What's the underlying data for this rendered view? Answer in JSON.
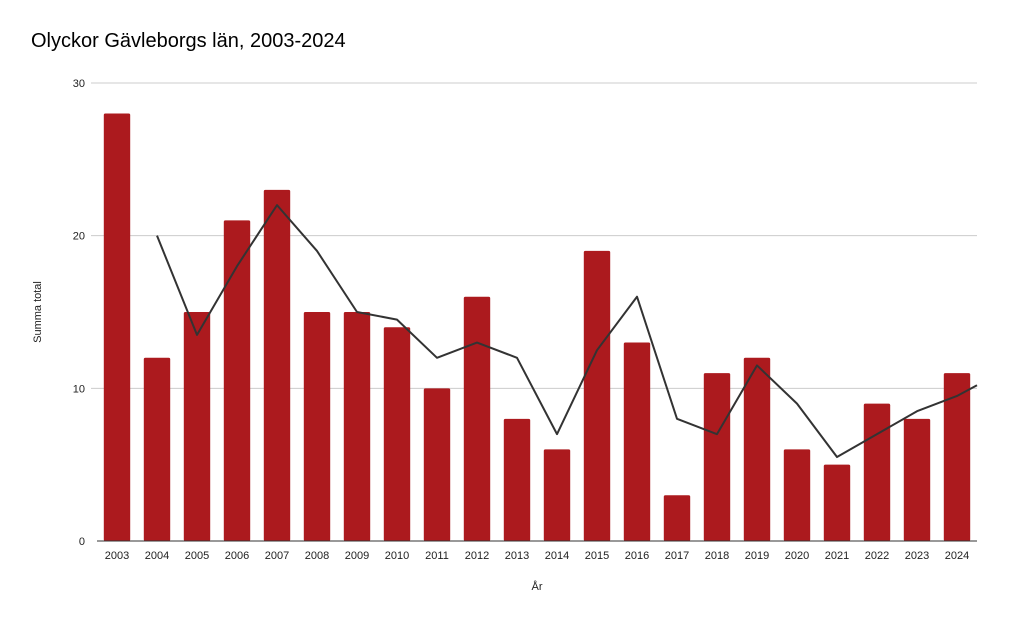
{
  "chart_data": {
    "type": "bar",
    "title": "Olyckor Gävleborgs län, 2003-2024",
    "xlabel": "År",
    "ylabel": "Summa total",
    "ylim": [
      0,
      30
    ],
    "yticks": [
      "0",
      "10",
      "20",
      "30"
    ],
    "grid": true,
    "categories": [
      "2003",
      "2004",
      "2005",
      "2006",
      "2007",
      "2008",
      "2009",
      "2010",
      "2011",
      "2012",
      "2013",
      "2014",
      "2015",
      "2016",
      "2017",
      "2018",
      "2019",
      "2020",
      "2021",
      "2022",
      "2023",
      "2024"
    ],
    "series": [
      {
        "type": "bar",
        "color": "#ac1a1e",
        "values": [
          28,
          12,
          15,
          21,
          23,
          15,
          15,
          14,
          10,
          16,
          8,
          6,
          19,
          13,
          3,
          11,
          12,
          6,
          5,
          9,
          8,
          11
        ]
      },
      {
        "type": "line",
        "color": "#333333",
        "values": [
          null,
          20,
          13.5,
          18,
          22,
          19,
          15,
          14.5,
          12,
          13,
          12,
          7,
          12.5,
          16,
          8,
          7,
          11.5,
          9,
          5.5,
          7,
          8.5,
          9.5
        ],
        "trailing_value": 10.2
      }
    ]
  }
}
